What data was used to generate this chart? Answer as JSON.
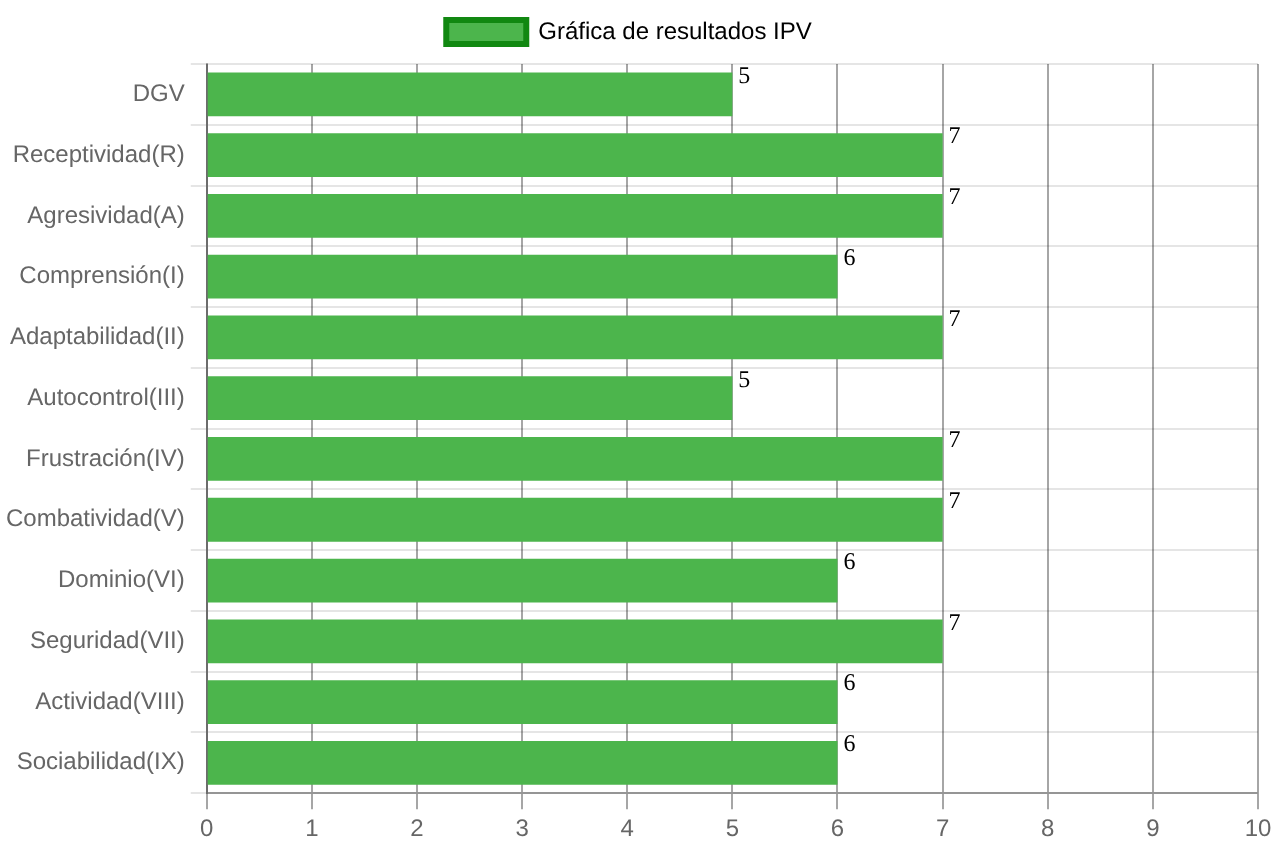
{
  "chart_data": {
    "type": "bar",
    "orientation": "horizontal",
    "categories": [
      "DGV",
      "Receptividad(R)",
      "Agresividad(A)",
      "Comprensión(I)",
      "Adaptabilidad(II)",
      "Autocontrol(III)",
      "Frustración(IV)",
      "Combatividad(V)",
      "Dominio(VI)",
      "Seguridad(VII)",
      "Actividad(VIII)",
      "Sociabilidad(IX)"
    ],
    "series": [
      {
        "name": "Gráfica de resultados IPV",
        "color": "#4cb54c",
        "values": [
          5,
          7,
          7,
          6,
          7,
          5,
          7,
          7,
          6,
          7,
          6,
          6
        ]
      }
    ],
    "xlim": [
      0,
      10
    ],
    "xticks": [
      0,
      1,
      2,
      3,
      4,
      5,
      6,
      7,
      8,
      9,
      10
    ],
    "grid": true,
    "legend": "top",
    "data_labels": true
  }
}
